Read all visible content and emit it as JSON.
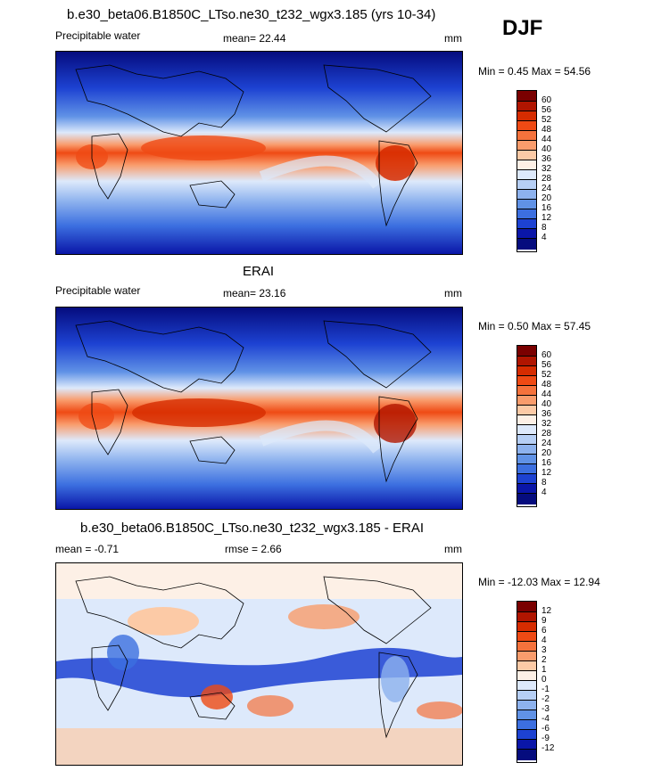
{
  "season": "DJF",
  "panels": [
    {
      "title": "b.e30_beta06.B1850C_LTso.ne30_t232_wgx3.185 (yrs 10-34)",
      "left_label": "Precipitable water",
      "mean_label": "mean=  22.44",
      "units": "mm",
      "minmax": "Min =   0.45 Max =  54.56",
      "levels": [
        "60",
        "56",
        "52",
        "48",
        "44",
        "40",
        "36",
        "32",
        "28",
        "24",
        "20",
        "16",
        "12",
        "8",
        "4"
      ]
    },
    {
      "title": "ERAI",
      "left_label": "Precipitable water",
      "mean_label": "mean=  23.16",
      "units": "mm",
      "minmax": "Min =   0.50 Max =  57.45",
      "levels": [
        "60",
        "56",
        "52",
        "48",
        "44",
        "40",
        "36",
        "32",
        "28",
        "24",
        "20",
        "16",
        "12",
        "8",
        "4"
      ]
    },
    {
      "title": "b.e30_beta06.B1850C_LTso.ne30_t232_wgx3.185 - ERAI",
      "left_label": "mean =  -0.71",
      "mean_label": "rmse =   2.66",
      "units": "mm",
      "minmax": "Min = -12.03 Max =  12.94",
      "levels": [
        "12",
        "9",
        "6",
        "4",
        "3",
        "2",
        "1",
        "0",
        "-1",
        "-2",
        "-3",
        "-4",
        "-6",
        "-9",
        "-12"
      ]
    }
  ],
  "colors": {
    "abs_scale": [
      "#7a0000",
      "#b01500",
      "#d62c00",
      "#ef4a14",
      "#f5723c",
      "#f99c6c",
      "#fccaa6",
      "#fdf0e6",
      "#dde9fb",
      "#b6cff5",
      "#8db2ee",
      "#6092e6",
      "#3c6fe0",
      "#1d42d2",
      "#0a16a8",
      "#050c7e"
    ],
    "diff_scale": [
      "#7a0000",
      "#b01500",
      "#d62c00",
      "#ef4a14",
      "#f5723c",
      "#f99c6c",
      "#fccaa6",
      "#fdf0e6",
      "#dde9fb",
      "#b6cff5",
      "#8db2ee",
      "#6092e6",
      "#3c6fe0",
      "#1d42d2",
      "#0a16a8",
      "#050c7e"
    ]
  }
}
